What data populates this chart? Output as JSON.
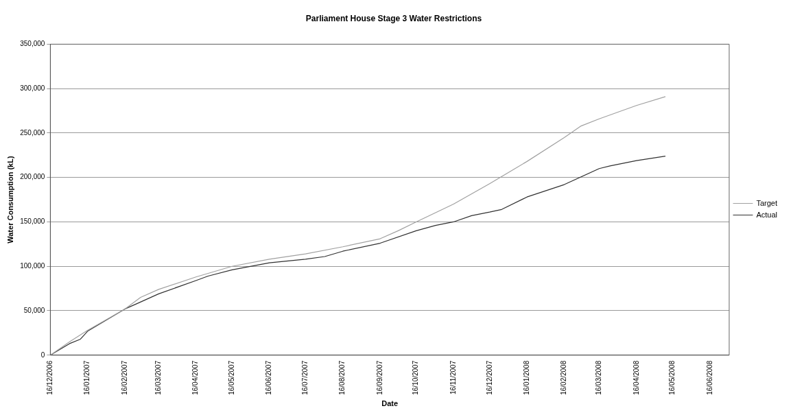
{
  "chart_data": {
    "type": "line",
    "title": "Parliament House Stage 3 Water Restrictions",
    "xlabel": "Date",
    "ylabel": "Water Consumption (kL)",
    "xlim": [
      "2006-12-16",
      "2008-07-02"
    ],
    "xticks": [
      {
        "value": "2006-12-16",
        "label": "16/12/2006"
      },
      {
        "value": "2007-01-16",
        "label": "16/01/2007"
      },
      {
        "value": "2007-02-16",
        "label": "16/02/2007"
      },
      {
        "value": "2007-03-16",
        "label": "16/03/2007"
      },
      {
        "value": "2007-04-16",
        "label": "16/04/2007"
      },
      {
        "value": "2007-05-16",
        "label": "16/05/2007"
      },
      {
        "value": "2007-06-16",
        "label": "16/06/2007"
      },
      {
        "value": "2007-07-16",
        "label": "16/07/2007"
      },
      {
        "value": "2007-08-16",
        "label": "16/08/2007"
      },
      {
        "value": "2007-09-16",
        "label": "16/09/2007"
      },
      {
        "value": "2007-10-16",
        "label": "16/10/2007"
      },
      {
        "value": "2007-11-16",
        "label": "16/11/2007"
      },
      {
        "value": "2007-12-16",
        "label": "16/12/2007"
      },
      {
        "value": "2008-01-16",
        "label": "16/01/2008"
      },
      {
        "value": "2008-02-16",
        "label": "16/02/2008"
      },
      {
        "value": "2008-03-16",
        "label": "16/03/2008"
      },
      {
        "value": "2008-04-16",
        "label": "16/04/2008"
      },
      {
        "value": "2008-05-16",
        "label": "16/05/2008"
      },
      {
        "value": "2008-06-16",
        "label": "16/06/2008"
      }
    ],
    "ylim": [
      0,
      350000
    ],
    "yticks": [
      {
        "value": 0,
        "label": "0"
      },
      {
        "value": 50000,
        "label": "50,000"
      },
      {
        "value": 100000,
        "label": "100,000"
      },
      {
        "value": 150000,
        "label": "150,000"
      },
      {
        "value": 200000,
        "label": "200,000"
      },
      {
        "value": 250000,
        "label": "250,000"
      },
      {
        "value": 300000,
        "label": "300,000"
      },
      {
        "value": 350000,
        "label": "350,000"
      }
    ],
    "grid": "y",
    "legend": "right",
    "marker": "none",
    "series": [
      {
        "name": "Target",
        "color": "#a0a0a0",
        "x": [
          "2006-12-16",
          "2007-01-01",
          "2007-01-16",
          "2007-02-16",
          "2007-03-01",
          "2007-03-16",
          "2007-04-16",
          "2007-05-16",
          "2007-06-16",
          "2007-07-16",
          "2007-08-16",
          "2007-09-16",
          "2007-10-01",
          "2007-10-16",
          "2007-11-16",
          "2007-12-16",
          "2008-01-16",
          "2008-02-16",
          "2008-03-01",
          "2008-03-16",
          "2008-04-16",
          "2008-05-10"
        ],
        "values": [
          0,
          15000,
          28000,
          52000,
          65000,
          74000,
          88000,
          100000,
          108000,
          114000,
          122000,
          131000,
          140000,
          150000,
          170000,
          193000,
          218000,
          245000,
          258000,
          266000,
          281000,
          291000
        ]
      },
      {
        "name": "Actual",
        "color": "#303030",
        "x": [
          "2006-12-16",
          "2007-01-01",
          "2007-01-10",
          "2007-01-16",
          "2007-02-16",
          "2007-02-26",
          "2007-03-16",
          "2007-04-16",
          "2007-04-26",
          "2007-05-16",
          "2007-06-16",
          "2007-07-16",
          "2007-08-01",
          "2007-08-16",
          "2007-09-16",
          "2007-10-16",
          "2007-11-01",
          "2007-11-16",
          "2007-12-01",
          "2007-12-16",
          "2007-12-26",
          "2008-01-16",
          "2008-02-16",
          "2008-03-16",
          "2008-03-25",
          "2008-04-16",
          "2008-05-10"
        ],
        "values": [
          0,
          13000,
          18000,
          27000,
          52000,
          58000,
          69000,
          84000,
          89000,
          96000,
          104000,
          108000,
          111000,
          117000,
          126000,
          140000,
          146000,
          150000,
          157000,
          161000,
          164000,
          178000,
          192000,
          210000,
          213000,
          219000,
          224000
        ]
      }
    ]
  }
}
